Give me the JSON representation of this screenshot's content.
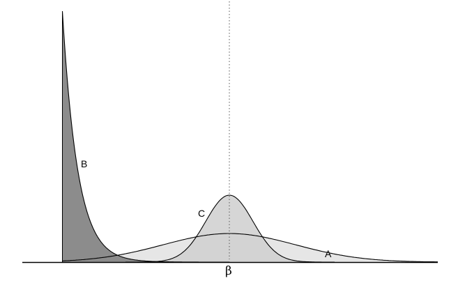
{
  "diagram": {
    "marker_symbol": "β",
    "curves": [
      {
        "id": "A",
        "label": "A",
        "kind": "wide-bell",
        "fill_color": "#e6e6e6"
      },
      {
        "id": "B",
        "label": "B",
        "kind": "decaying-spike",
        "fill_color": "#8c8c8c"
      },
      {
        "id": "C",
        "label": "C",
        "kind": "narrow-bell",
        "fill_color": "#cfcfcf"
      }
    ],
    "stroke_color": "#000000",
    "guide_color": "#555555",
    "background_color": "#ffffff"
  }
}
